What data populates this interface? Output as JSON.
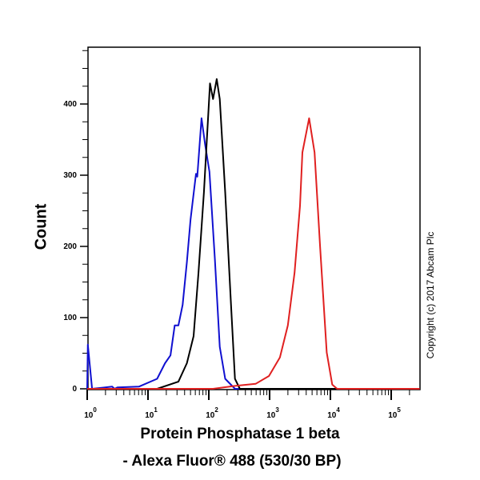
{
  "chart_data": {
    "type": "line",
    "title": "",
    "xlabel_line1": "Protein Phosphatase 1 beta",
    "xlabel_line2": "- Alexa Fluor® 488 (530/30 BP)",
    "ylabel": "Count",
    "xscale": "log",
    "xlim_log10": [
      0,
      5.47
    ],
    "ylim": [
      0,
      480
    ],
    "x_ticks": [
      {
        "base": "10",
        "exp": "0"
      },
      {
        "base": "10",
        "exp": "1"
      },
      {
        "base": "10",
        "exp": "2"
      },
      {
        "base": "10",
        "exp": "3"
      },
      {
        "base": "10",
        "exp": "4"
      },
      {
        "base": "10",
        "exp": "5"
      }
    ],
    "y_ticks": [
      "0",
      "100",
      "200",
      "300",
      "400"
    ],
    "series": [
      {
        "name": "blue",
        "color": "#1010d0",
        "log10_x": [
          0.0,
          0.01,
          0.08,
          0.41,
          0.45,
          0.5,
          0.85,
          1.15,
          1.28,
          1.37,
          1.44,
          1.5,
          1.57,
          1.64,
          1.7,
          1.79,
          1.81,
          1.88,
          1.94,
          2.01,
          2.1,
          2.18,
          2.27,
          2.43,
          5.47
        ],
        "y": [
          0,
          62,
          0,
          3,
          0,
          2,
          3,
          14,
          36,
          47,
          89,
          89,
          118,
          178,
          238,
          302,
          298,
          380,
          343,
          305,
          182,
          59,
          14,
          0,
          0
        ]
      },
      {
        "name": "black",
        "color": "#000000",
        "log10_x": [
          1.15,
          1.5,
          1.64,
          1.75,
          1.83,
          1.92,
          2.02,
          2.07,
          2.13,
          2.18,
          2.27,
          2.36,
          2.43,
          2.51,
          5.47
        ],
        "y": [
          0,
          10,
          36,
          74,
          163,
          276,
          429,
          407,
          435,
          407,
          276,
          126,
          14,
          0,
          0
        ]
      },
      {
        "name": "red",
        "color": "#e02020",
        "log10_x": [
          0.0,
          2.07,
          2.43,
          2.77,
          2.99,
          3.17,
          3.3,
          3.41,
          3.5,
          3.54,
          3.65,
          3.74,
          3.83,
          3.94,
          4.03,
          4.11,
          5.47
        ],
        "y": [
          0,
          0,
          4,
          7,
          18,
          44,
          89,
          163,
          257,
          332,
          380,
          332,
          200,
          51,
          6,
          0,
          0
        ]
      }
    ]
  },
  "copyright": "Copyright (c) 2017 Abcam Plc"
}
